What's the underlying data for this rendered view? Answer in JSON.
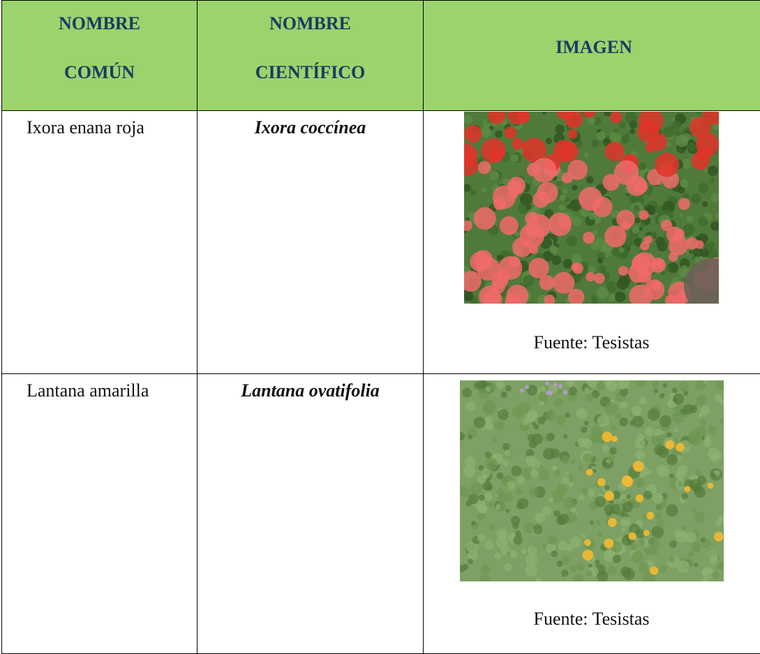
{
  "table": {
    "header": [
      [
        "NOMBRE",
        "COMÚN"
      ],
      [
        "NOMBRE",
        "CIENTÍFICO"
      ],
      [
        "IMAGEN"
      ]
    ],
    "rows": [
      {
        "common": "Ixora enana roja",
        "scientific": "Ixora coccínea",
        "caption": "Fuente: Tesistas"
      },
      {
        "common": "Lantana amarilla",
        "scientific": "Lantana ovatifolia",
        "caption": "Fuente: Tesistas"
      }
    ]
  }
}
